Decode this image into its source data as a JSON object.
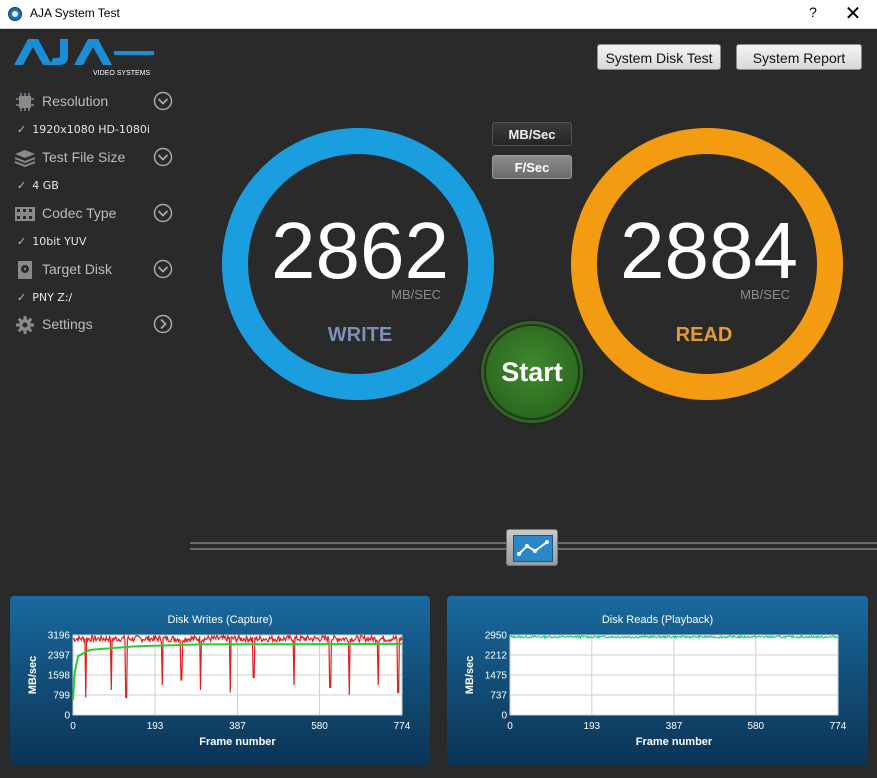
{
  "window": {
    "title": "AJA System Test",
    "help_glyph": "?",
    "close_glyph": "✕"
  },
  "logo": {
    "brand": "AJA",
    "subtitle": "VIDEO SYSTEMS"
  },
  "toolbar": {
    "disk_test_label": "System Disk Test",
    "report_label": "System Report"
  },
  "sidebar": {
    "items": [
      {
        "label": "Resolution",
        "value": "1920x1080 HD-1080i",
        "icon": "resolution-chip-icon"
      },
      {
        "label": "Test File Size",
        "value": "4 GB",
        "icon": "stack-icon"
      },
      {
        "label": "Codec Type",
        "value": "10bit YUV",
        "icon": "film-icon"
      },
      {
        "label": "Target Disk",
        "value": "PNY Z:/",
        "icon": "disk-icon"
      },
      {
        "label": "Settings",
        "value": "",
        "icon": "gear-icon"
      }
    ],
    "check_glyph": "✓"
  },
  "units": {
    "mbsec_label": "MB/Sec",
    "fsec_label": "F/Sec"
  },
  "write": {
    "value": "2862",
    "unit": "MB/SEC",
    "label": "WRITE",
    "ring_color": "#1b9ee0",
    "label_color": "#7e8fb8"
  },
  "read": {
    "value": "2884",
    "unit": "MB/SEC",
    "label": "READ",
    "ring_color": "#f39c12",
    "label_color": "#e89b2e"
  },
  "start_label": "Start",
  "chart_data": [
    {
      "type": "line",
      "title": "Disk Writes (Capture)",
      "xlabel": "Frame number",
      "ylabel": "MB/sec",
      "xlim": [
        0,
        774
      ],
      "ylim": [
        0,
        3196
      ],
      "x_ticks": [
        0,
        193,
        387,
        580,
        774
      ],
      "y_ticks": [
        0,
        799,
        1598,
        2397,
        3196
      ],
      "series": [
        {
          "color": "#e02020",
          "base": 3050,
          "noise": 130,
          "dips": [
            [
              30,
              700
            ],
            [
              90,
              1000
            ],
            [
              125,
              700
            ],
            [
              210,
              1200
            ],
            [
              255,
              1400
            ],
            [
              300,
              1000
            ],
            [
              370,
              900
            ],
            [
              425,
              1500
            ],
            [
              520,
              1200
            ],
            [
              605,
              1100
            ],
            [
              650,
              800
            ],
            [
              718,
              1200
            ],
            [
              765,
              900
            ]
          ]
        },
        {
          "color": "#2ecc2e",
          "rise": [
            [
              0,
              600
            ],
            [
              4,
              1700
            ],
            [
              12,
              2350
            ],
            [
              40,
              2600
            ],
            [
              150,
              2750
            ],
            [
              300,
              2820
            ],
            [
              774,
              2840
            ]
          ]
        }
      ]
    },
    {
      "type": "line",
      "title": "Disk Reads (Playback)",
      "xlabel": "Frame number",
      "ylabel": "MB/sec",
      "xlim": [
        0,
        774
      ],
      "ylim": [
        0,
        2950
      ],
      "x_ticks": [
        0,
        193,
        387,
        580,
        774
      ],
      "y_ticks": [
        0,
        737,
        1475,
        2212,
        2950
      ],
      "series": [
        {
          "color": "#2ecc71",
          "base": 2880,
          "noise": 40
        }
      ]
    }
  ]
}
